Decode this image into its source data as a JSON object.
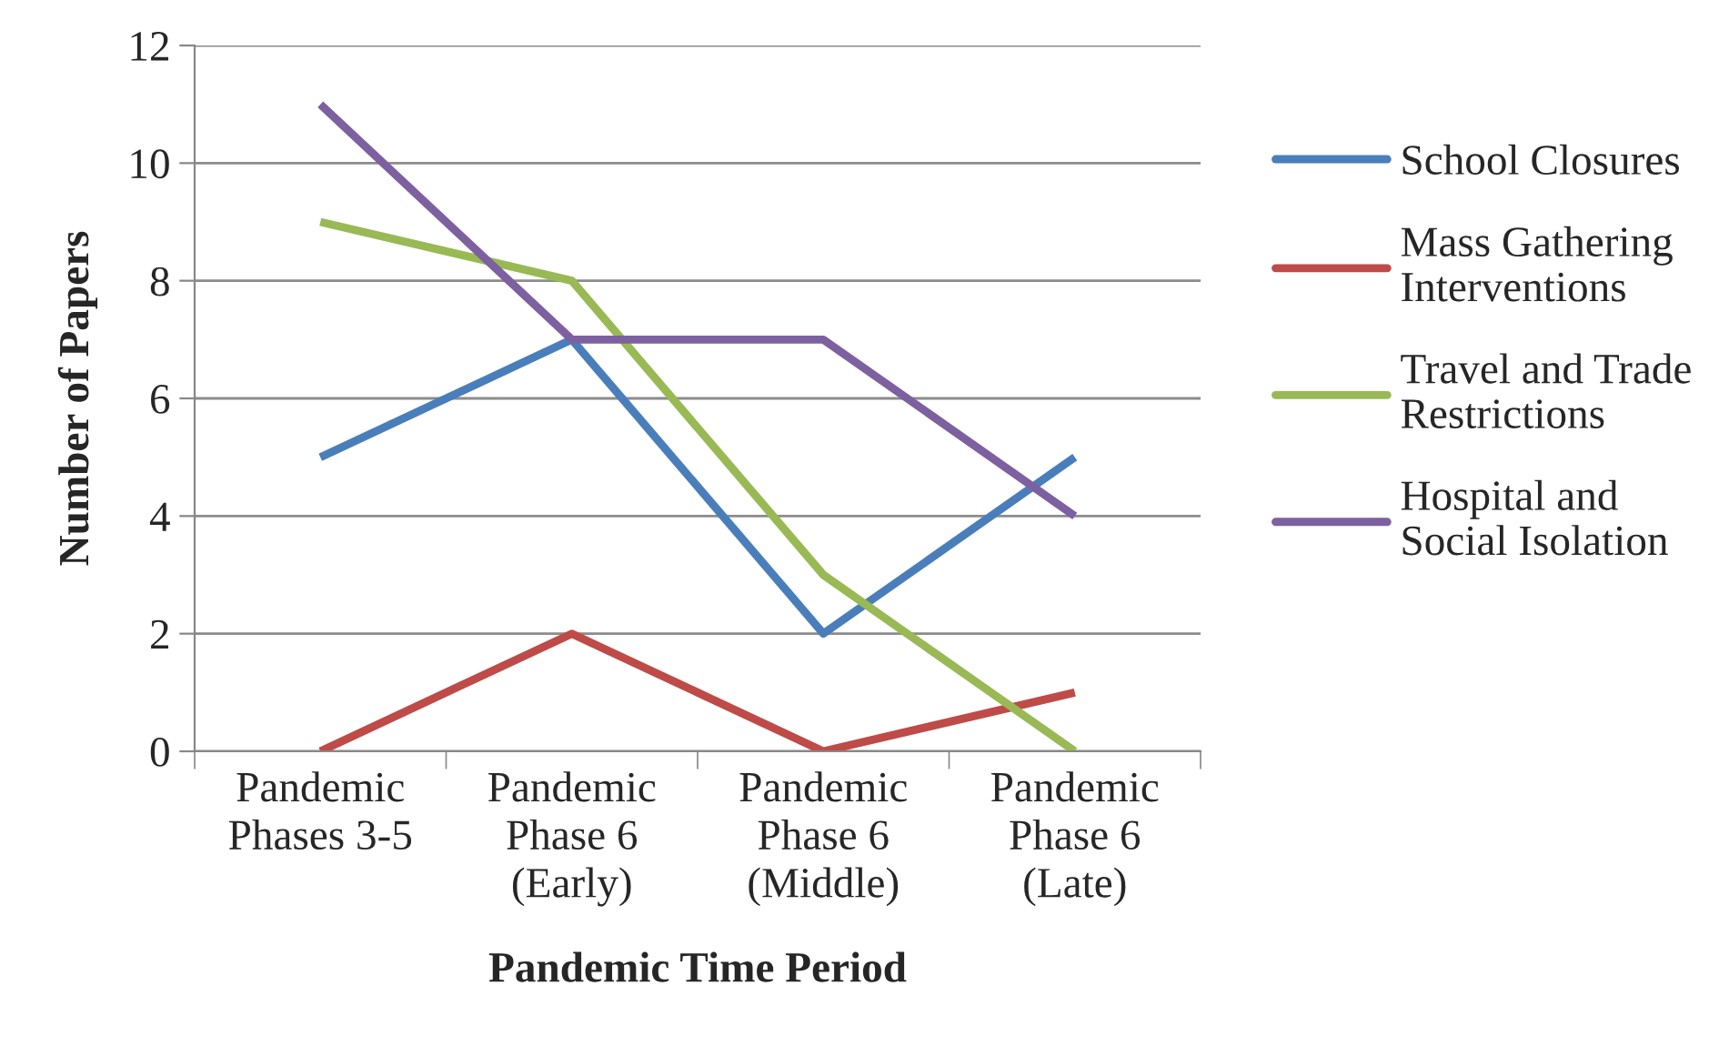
{
  "chart_data": {
    "type": "line",
    "xlabel": "Pandemic Time Period",
    "ylabel": "Number of Papers",
    "categories": [
      "Pandemic\nPhases 3-5",
      "Pandemic\nPhase 6\n(Early)",
      "Pandemic\nPhase 6\n(Middle)",
      "Pandemic\nPhase 6\n(Late)"
    ],
    "series": [
      {
        "name": "School Closures",
        "color": "#4a7ebb",
        "values": [
          5,
          7,
          2,
          5
        ]
      },
      {
        "name": "Mass Gathering\nInterventions",
        "color": "#be4b48",
        "values": [
          0,
          2,
          0,
          1
        ]
      },
      {
        "name": "Travel and Trade\nRestrictions",
        "color": "#98b954",
        "values": [
          9,
          8,
          3,
          0
        ]
      },
      {
        "name": "Hospital and\nSocial Isolation",
        "color": "#7d60a0",
        "values": [
          11,
          7,
          7,
          4
        ]
      }
    ],
    "ylim": [
      0,
      12
    ],
    "yticks": [
      0,
      2,
      4,
      6,
      8,
      10,
      12
    ],
    "grid": "y",
    "legend": "right",
    "marker": "none",
    "line_style": "solid"
  }
}
